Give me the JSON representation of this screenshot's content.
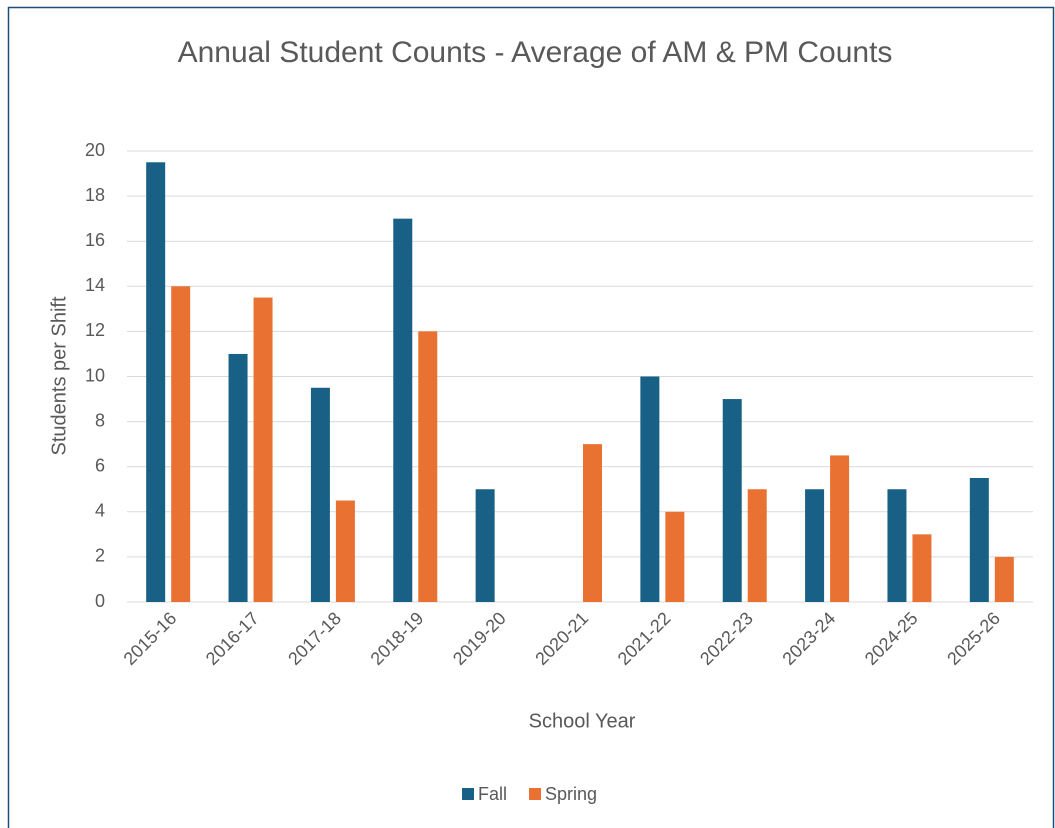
{
  "chart_data": {
    "type": "bar",
    "title": "Annual Student Counts - Average of AM & PM Counts",
    "x_label": "School Year",
    "y_label": "Students per Shift",
    "categories": [
      "2015-16",
      "2016-17",
      "2017-18",
      "2018-19",
      "2019-20",
      "2020-21",
      "2021-22",
      "2022-23",
      "2023-24",
      "2024-25",
      "2025-26"
    ],
    "series": [
      {
        "name": "Fall",
        "color": "#186086",
        "values": [
          19.5,
          11,
          9.5,
          17,
          5,
          null,
          10,
          9,
          5,
          5,
          5.5
        ]
      },
      {
        "name": "Spring",
        "color": "#e97132",
        "values": [
          14,
          13.5,
          4.5,
          12,
          null,
          7,
          4,
          5,
          6.5,
          3,
          2
        ]
      }
    ],
    "ylim": [
      0,
      20
    ],
    "yticks": [
      0,
      2,
      4,
      6,
      8,
      10,
      12,
      14,
      16,
      18,
      20
    ],
    "grid": true,
    "legend": "bottom"
  }
}
